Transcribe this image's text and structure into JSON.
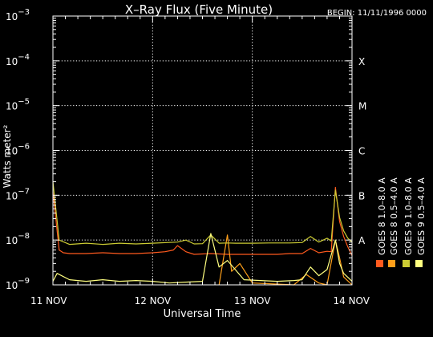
{
  "chart_data": {
    "type": "line",
    "title": "X–Ray Flux (Five Minute)",
    "begin_label": "BEGIN: 11/11/1996 0000",
    "xlabel": "Universal Time",
    "ylabel": "Watts meter²",
    "y_scale": "log",
    "ylim": [
      1e-09,
      0.001
    ],
    "y_ticks": [
      {
        "exp": "-9",
        "value": 1e-09
      },
      {
        "exp": "-8",
        "value": 1e-08
      },
      {
        "exp": "-7",
        "value": 1e-07
      },
      {
        "exp": "-6",
        "value": 1e-06
      },
      {
        "exp": "-5",
        "value": 1e-05
      },
      {
        "exp": "-4",
        "value": 0.0001
      },
      {
        "exp": "-3",
        "value": 0.001
      }
    ],
    "y_tick_base": "10",
    "xlim": [
      "1996-11-11",
      "1996-11-14"
    ],
    "x_ticks": [
      {
        "label": "11 NOV",
        "x": "1996-11-11"
      },
      {
        "label": "12 NOV",
        "x": "1996-11-12"
      },
      {
        "label": "13 NOV",
        "x": "1996-11-13"
      },
      {
        "label": "14 NOV",
        "x": "1996-11-14"
      }
    ],
    "flare_classes": [
      {
        "label": "A",
        "value": 1e-08
      },
      {
        "label": "B",
        "value": 1e-07
      },
      {
        "label": "C",
        "value": 1e-06
      },
      {
        "label": "M",
        "value": 1e-05
      },
      {
        "label": "X",
        "value": 0.0001
      }
    ],
    "grid": true,
    "legend_position": "right",
    "colors": {
      "goes8_long": "#ff5a1e",
      "goes8_short": "#ff9f1a",
      "goes9_long": "#cccc33",
      "goes9_short": "#ffff80"
    },
    "series": [
      {
        "name": "GOES 8 1.0–8.0 A",
        "color_key": "goes8_long",
        "x": [
          "1996-11-11 00:00",
          "1996-11-11 01:30",
          "1996-11-11 02:30",
          "1996-11-11 04:00",
          "1996-11-11 08:00",
          "1996-11-11 12:00",
          "1996-11-11 16:00",
          "1996-11-11 20:00",
          "1996-11-12 00:00",
          "1996-11-12 03:00",
          "1996-11-12 05:00",
          "1996-11-12 06:00",
          "1996-11-12 08:00",
          "1996-11-12 10:00",
          "1996-11-12 14:00",
          "1996-11-12 18:00",
          "1996-11-12 22:00",
          "1996-11-13 02:00",
          "1996-11-13 06:00",
          "1996-11-13 09:00",
          "1996-11-13 12:00",
          "1996-11-13 14:00",
          "1996-11-13 16:00",
          "1996-11-13 18:00",
          "1996-11-13 19:00",
          "1996-11-13 20:00",
          "1996-11-13 21:00",
          "1996-11-13 22:00",
          "1996-11-13 23:00",
          "1996-11-14 00:00"
        ],
        "y": [
          1.2e-07,
          6e-09,
          5.2e-09,
          5e-09,
          5e-09,
          5.2e-09,
          5e-09,
          5e-09,
          5.2e-09,
          5.5e-09,
          6e-09,
          7.5e-09,
          5.5e-09,
          4.8e-09,
          5e-09,
          4.8e-09,
          4.8e-09,
          4.8e-09,
          4.8e-09,
          5e-09,
          5e-09,
          6.5e-09,
          5.2e-09,
          5.6e-09,
          5.5e-09,
          1.5e-07,
          2.6e-08,
          1.2e-08,
          7e-09,
          4.5e-09
        ]
      },
      {
        "name": "GOES 8 0.5–4.0 A",
        "color_key": "goes8_short",
        "x": [
          "1996-11-12 16:00",
          "1996-11-12 18:00",
          "1996-11-12 19:00",
          "1996-11-12 21:00",
          "1996-11-13 00:00",
          "1996-11-13 10:00",
          "1996-11-13 13:00",
          "1996-11-13 16:00",
          "1996-11-13 18:00",
          "1996-11-13 20:00",
          "1996-11-13 21:00",
          "1996-11-13 22:00",
          "1996-11-14 00:00"
        ],
        "y": [
          1e-09,
          1.3e-08,
          2e-09,
          3e-09,
          1.1e-09,
          1e-09,
          1.7e-09,
          1.1e-09,
          1e-09,
          1e-08,
          4e-09,
          1.5e-09,
          1e-09
        ]
      },
      {
        "name": "GOES 9 1.0–8.0 A",
        "color_key": "goes9_long",
        "x": [
          "1996-11-11 00:00",
          "1996-11-11 01:30",
          "1996-11-11 04:00",
          "1996-11-11 08:00",
          "1996-11-11 12:00",
          "1996-11-11 16:00",
          "1996-11-11 20:00",
          "1996-11-12 00:00",
          "1996-11-12 06:00",
          "1996-11-12 08:00",
          "1996-11-12 10:00",
          "1996-11-12 12:00",
          "1996-11-12 14:00",
          "1996-11-12 16:00",
          "1996-11-12 18:00",
          "1996-11-12 20:00",
          "1996-11-12 22:00",
          "1996-11-13 00:00",
          "1996-11-13 04:00",
          "1996-11-13 09:00",
          "1996-11-13 12:00",
          "1996-11-13 14:00",
          "1996-11-13 16:00",
          "1996-11-13 18:00",
          "1996-11-13 19:00",
          "1996-11-13 20:00",
          "1996-11-13 21:00",
          "1996-11-13 22:00",
          "1996-11-13 23:00",
          "1996-11-14 00:00"
        ],
        "y": [
          2e-07,
          1e-08,
          8e-09,
          8.5e-09,
          8e-09,
          8.5e-09,
          8.2e-09,
          8.5e-09,
          9e-09,
          1e-08,
          8.2e-09,
          8.3e-09,
          1.3e-08,
          8.5e-09,
          8.6e-09,
          8.5e-09,
          8.5e-09,
          8.5e-09,
          8.6e-09,
          8.6e-09,
          8.8e-09,
          1.2e-08,
          9e-09,
          1.1e-08,
          9.5e-09,
          1.3e-07,
          3.2e-08,
          1.6e-08,
          1.1e-08,
          9e-09
        ]
      },
      {
        "name": "GOES 9 0.5–4.0 A",
        "color_key": "goes9_short",
        "x": [
          "1996-11-11 00:00",
          "1996-11-11 01:00",
          "1996-11-11 04:00",
          "1996-11-11 08:00",
          "1996-11-11 12:00",
          "1996-11-11 16:00",
          "1996-11-11 20:00",
          "1996-11-12 00:00",
          "1996-11-12 04:00",
          "1996-11-12 08:00",
          "1996-11-12 12:00",
          "1996-11-12 14:00",
          "1996-11-12 16:00",
          "1996-11-12 18:00",
          "1996-11-12 22:00",
          "1996-11-13 02:00",
          "1996-11-13 06:00",
          "1996-11-13 10:00",
          "1996-11-13 12:00",
          "1996-11-13 14:00",
          "1996-11-13 16:00",
          "1996-11-13 18:00",
          "1996-11-13 20:00",
          "1996-11-13 21:00",
          "1996-11-13 22:00",
          "1996-11-14 00:00"
        ],
        "y": [
          1.2e-09,
          1.8e-09,
          1.3e-09,
          1.2e-09,
          1.3e-09,
          1.2e-09,
          1.25e-09,
          1.2e-09,
          1.1e-09,
          1.15e-09,
          1.2e-09,
          1.4e-08,
          2.5e-09,
          3.5e-09,
          1.3e-09,
          1.25e-09,
          1.2e-09,
          1.25e-09,
          1.3e-09,
          2.5e-09,
          1.6e-09,
          2.2e-09,
          1e-08,
          3e-09,
          1.8e-09,
          1.2e-09
        ]
      }
    ]
  }
}
